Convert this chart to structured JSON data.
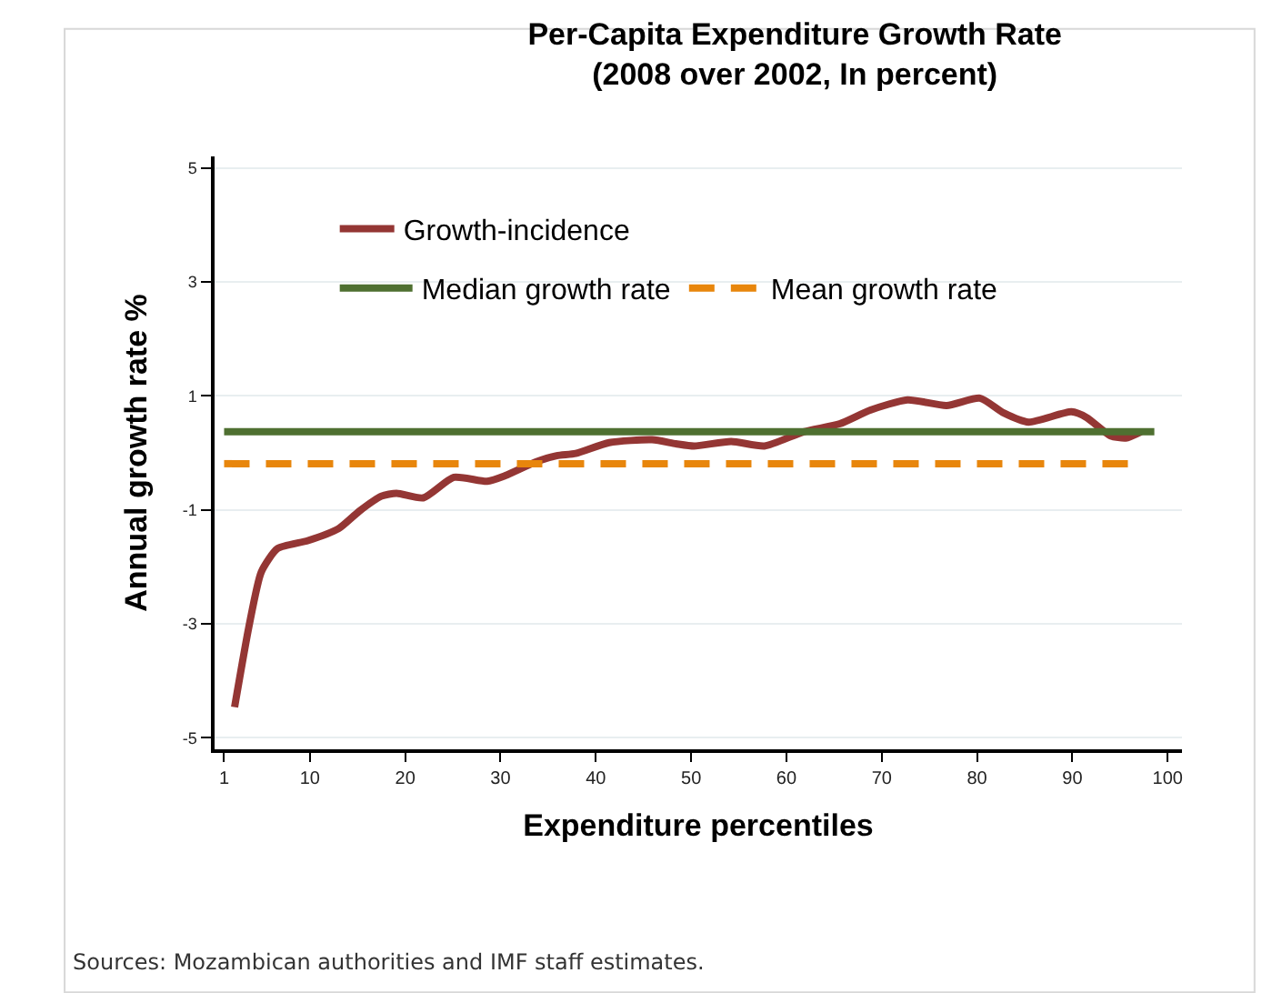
{
  "chart_data": {
    "type": "line",
    "title": "Per-Capita Expenditure Growth Rate\n(2008 over 2002, In percent)",
    "xlabel": "Expenditure percentiles",
    "ylabel": "Annual growth rate %",
    "series": [
      {
        "name": "Growth-incidence",
        "color": "#943634",
        "line_style": "solid",
        "x": [
          2.1,
          3.6,
          4.9,
          6.6,
          9.8,
          13.0,
          15.2,
          17.5,
          19.1,
          21.9,
          25.1,
          28.6,
          30.5,
          33.7,
          35.9,
          37.9,
          41.4,
          45.9,
          48.4,
          50.3,
          54.2,
          57.7,
          61.8,
          65.6,
          68.8,
          72.7,
          76.8,
          80.3,
          82.8,
          85.4,
          89.9,
          91.5,
          94.0,
          95.6,
          97.2
        ],
        "values": [
          -4.46,
          -3.05,
          -2.09,
          -1.68,
          -1.54,
          -1.33,
          -1.02,
          -0.76,
          -0.71,
          -0.79,
          -0.43,
          -0.5,
          -0.4,
          -0.16,
          -0.05,
          -0.01,
          0.18,
          0.23,
          0.16,
          0.12,
          0.2,
          0.12,
          0.37,
          0.51,
          0.75,
          0.93,
          0.83,
          0.96,
          0.7,
          0.54,
          0.72,
          0.62,
          0.3,
          0.26,
          0.37
        ]
      },
      {
        "name": "Median growth rate",
        "color": "#4f7031",
        "line_style": "solid",
        "x": [
          1,
          98.6
        ],
        "values": [
          0.37,
          0.37
        ]
      },
      {
        "name": "Mean growth rate",
        "color": "#e8860c",
        "line_style": "dashed",
        "x": [
          1,
          96.5
        ],
        "values": [
          -0.19,
          -0.19
        ]
      }
    ],
    "xlim": [
      0,
      101.5
    ],
    "xticks": [
      1,
      10,
      20,
      30,
      40,
      50,
      60,
      70,
      80,
      90,
      100
    ],
    "ylim": [
      -5.2,
      5.2
    ],
    "yticks": [
      -5,
      -3,
      -1,
      1,
      3,
      5
    ],
    "grid": "y",
    "legend": "top",
    "annotations": [
      "Sources: Mozambican authorities and IMF staff estimates."
    ]
  }
}
